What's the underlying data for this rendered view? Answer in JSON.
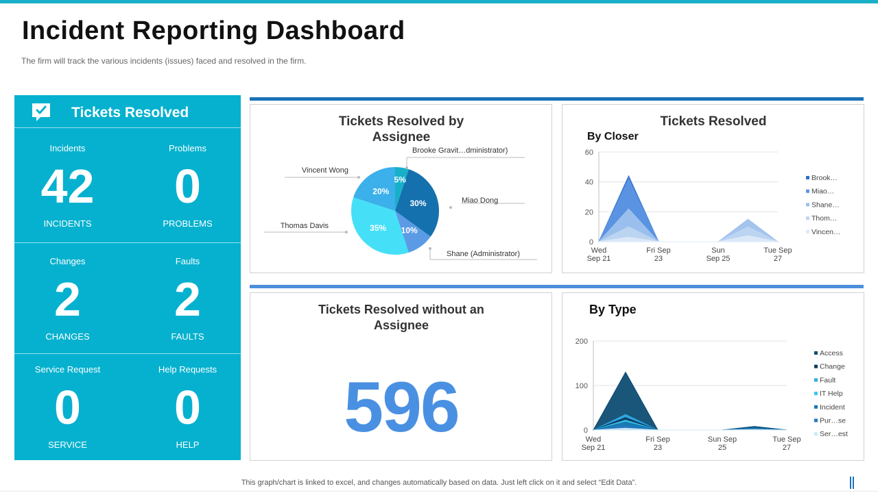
{
  "page": {
    "title": "Incident Reporting Dashboard",
    "subtitle": "The firm will track the various  incidents (issues) faced and resolved  in the firm.",
    "footer": "This graph/chart is linked to excel,  and changes automatically based on data. Just left click on it and select “Edit Data”."
  },
  "colors": {
    "panel": "#05B1CF",
    "accent": "#1A72B8",
    "big_number": "#4A90E2"
  },
  "summary": {
    "header": "Tickets Resolved",
    "icon": "ticket-check-icon",
    "cells": [
      {
        "label": "Incidents",
        "value": "42",
        "caption": "INCIDENTS"
      },
      {
        "label": "Problems",
        "value": "0",
        "caption": "PROBLEMS"
      },
      {
        "label": "Changes",
        "value": "2",
        "caption": "CHANGES"
      },
      {
        "label": "Faults",
        "value": "2",
        "caption": "FAULTS"
      },
      {
        "label": "Service Request",
        "value": "0",
        "caption": "SERVICE"
      },
      {
        "label": "Help Requests",
        "value": "0",
        "caption": "HELP"
      }
    ]
  },
  "no_assignee": {
    "title_line1": "Tickets Resolved without an",
    "title_line2": "Assignee",
    "value": "596"
  },
  "resolved_card": {
    "title": "Tickets Resolved"
  },
  "chart_data": [
    {
      "type": "pie",
      "title_line1": "Tickets Resolved by",
      "title_line2": "Assignee",
      "slices": [
        {
          "label": "Miao Dong",
          "value": 30,
          "display": "30%",
          "color": "#1570AE"
        },
        {
          "label": "Shane (Administrator)",
          "value": 10,
          "display": "10%",
          "color": "#5B9BE6"
        },
        {
          "label": "Thomas Davis",
          "value": 35,
          "display": "35%",
          "color": "#45E0F7"
        },
        {
          "label": "Vincent Wong",
          "value": 20,
          "display": "20%",
          "color": "#3BB0EA"
        },
        {
          "label": "Brooke Gravit…dministrator)",
          "value": 5,
          "display": "5%",
          "color": "#17B0C9"
        }
      ]
    },
    {
      "type": "area",
      "title": "By Closer",
      "categories": [
        "Wed Sep 21",
        "Fri Sep 23",
        "Sun Sep 25",
        "Tue Sep 27"
      ],
      "x_labels": [
        [
          "Wed",
          "Sep 21"
        ],
        [
          "Fri Sep",
          "23"
        ],
        [
          "Sun",
          "Sep 25"
        ],
        [
          "Tue Sep",
          "27"
        ]
      ],
      "x": [
        0,
        1,
        2,
        3,
        4,
        5,
        6
      ],
      "ylim": [
        0,
        60
      ],
      "yticks": [
        "0",
        "20",
        "40",
        "60"
      ],
      "ytick_values": [
        0,
        20,
        40,
        60
      ],
      "series": [
        {
          "name": "Brook…",
          "color": "#2F6FCC",
          "values": [
            0,
            44,
            0,
            0,
            0,
            0,
            0
          ]
        },
        {
          "name": "Miao…",
          "color": "#5C95E2",
          "values": [
            0,
            42,
            0,
            0,
            0,
            0,
            0
          ]
        },
        {
          "name": "Shane…",
          "color": "#9EC1EC",
          "values": [
            0,
            22,
            0,
            0,
            0,
            15,
            0
          ]
        },
        {
          "name": "Thom…",
          "color": "#BDD5F2",
          "values": [
            0,
            10,
            0,
            0,
            0,
            10,
            0
          ]
        },
        {
          "name": "Vincen…",
          "color": "#DCE9F8",
          "values": [
            0,
            3,
            0,
            0,
            0,
            4,
            0
          ]
        }
      ]
    },
    {
      "type": "area",
      "title": "By Type",
      "categories": [
        "Wed Sep 21",
        "Fri Sep 23",
        "Sun Sep 25",
        "Tue Sep 27"
      ],
      "x_labels": [
        [
          "Wed",
          "Sep 21"
        ],
        [
          "Fri Sep",
          "23"
        ],
        [
          "Sun Sep",
          "25"
        ],
        [
          "Tue Sep",
          "27"
        ]
      ],
      "x": [
        0,
        1,
        2,
        3,
        4,
        5,
        6
      ],
      "ylim": [
        0,
        200
      ],
      "yticks": [
        "0",
        "100",
        "200"
      ],
      "ytick_values": [
        0,
        100,
        200
      ],
      "series": [
        {
          "name": "Access",
          "color": "#0E4C73",
          "values": [
            0,
            130,
            0,
            0,
            0,
            8,
            0
          ]
        },
        {
          "name": "Change",
          "color": "#0B3C63",
          "values": [
            0,
            28,
            0,
            0,
            0,
            4,
            0
          ]
        },
        {
          "name": "Fault",
          "color": "#2FAAE6",
          "values": [
            0,
            35,
            0,
            0,
            0,
            3,
            0
          ]
        },
        {
          "name": "IT Help",
          "color": "#3BC4EE",
          "values": [
            0,
            22,
            0,
            0,
            0,
            2,
            0
          ]
        },
        {
          "name": "Incident",
          "color": "#1577AE",
          "values": [
            0,
            18,
            0,
            0,
            0,
            5,
            0
          ]
        },
        {
          "name": "Pur…se",
          "color": "#2379C2",
          "values": [
            0,
            10,
            0,
            0,
            0,
            2,
            0
          ]
        },
        {
          "name": "Ser…est",
          "color": "#CFE8F5",
          "values": [
            0,
            4,
            0,
            0,
            0,
            1,
            0
          ]
        }
      ]
    }
  ]
}
